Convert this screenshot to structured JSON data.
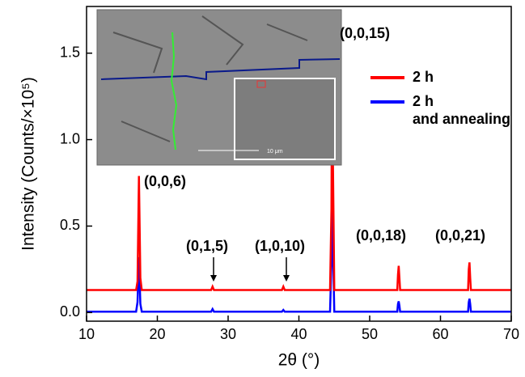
{
  "chart_data": {
    "type": "line",
    "x_label": "2θ (°)",
    "y_label": "Intensity (Counts/×10⁵)",
    "x": [
      10,
      17.0,
      17.2,
      17.4,
      17.6,
      17.8,
      27.6,
      27.8,
      28.0,
      37.6,
      37.8,
      38.0,
      44.4,
      44.6,
      44.7,
      44.8,
      45.0,
      53.9,
      54.0,
      54.1,
      54.2,
      54.3,
      63.9,
      64.0,
      64.1,
      64.2,
      64.3,
      70
    ],
    "series": [
      {
        "name": "2 h",
        "color": "#ff0000",
        "values": [
          0.13,
          0.13,
          0.18,
          0.79,
          0.2,
          0.13,
          0.13,
          0.15,
          0.13,
          0.13,
          0.15,
          0.13,
          0.13,
          0.6,
          1.65,
          0.9,
          0.13,
          0.13,
          0.22,
          0.27,
          0.2,
          0.13,
          0.13,
          0.25,
          0.29,
          0.2,
          0.13,
          0.13
        ]
      },
      {
        "name": "2 h and annealing",
        "color": "#0000ff",
        "values": [
          0.005,
          0.005,
          0.06,
          0.32,
          0.05,
          0.005,
          0.005,
          0.02,
          0.005,
          0.005,
          0.015,
          0.005,
          0.005,
          0.3,
          0.68,
          0.4,
          0.005,
          0.005,
          0.05,
          0.065,
          0.04,
          0.005,
          0.005,
          0.06,
          0.08,
          0.05,
          0.005,
          0.005
        ]
      }
    ],
    "xlim": [
      10,
      70
    ],
    "xticks": [
      10,
      20,
      30,
      40,
      50,
      60,
      70
    ],
    "ylim": [
      -0.05,
      1.77
    ],
    "yticks": [
      {
        "value": 0,
        "label": "0.0"
      },
      0.5,
      {
        "value": 1,
        "label": "1.0"
      },
      1.5
    ],
    "annotations": [
      "(0,0,15)",
      "(0,0,6)",
      "(0,1,5)",
      "(1,0,10)",
      "(0,0,18)",
      "(0,0,21)"
    ],
    "inset_scale_label": "10 μm",
    "legend": "upper right"
  }
}
